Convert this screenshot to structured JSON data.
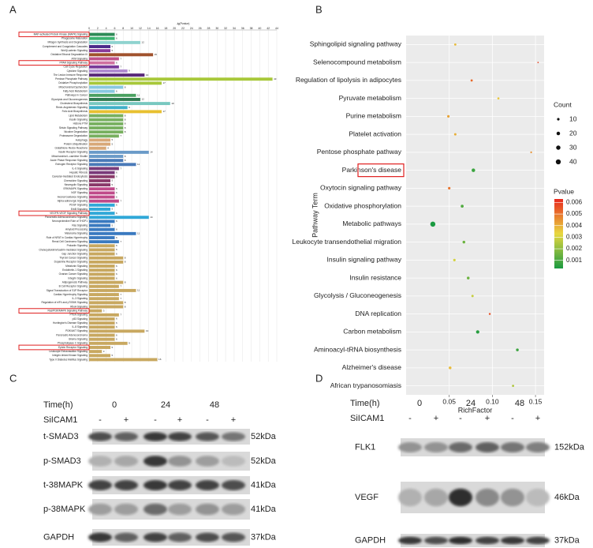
{
  "chart_data": [
    {
      "type": "hbar",
      "panel": "A",
      "title": "-lg(Pvalue)",
      "categories": [
        "MAP-activated Protein Kinase (MAPK) Signaling",
        "Phagosome Maturation",
        "Mitogen Synthesis and Degradation",
        "Complement and Coagulation Cascades",
        "Wnt/β-catenin Signaling",
        "Oxidative Ethanol Degradation III",
        "ATM Signaling",
        "PPAR Signaling Pathway",
        "Cell Cycle Regulation",
        "Cytokine Signaling",
        "The Lesion Immune Response",
        "Pentose Phosphate Pathway",
        "Oxidative Phosphorylation",
        "Mitochondrial Dysfunction",
        "Fatty Acid Metabolism",
        "Pathways in Cancer",
        "Glycolysis and Gluconeogenesis",
        "Cholesterol Biosynthesis",
        "Renin-Angiotensin Signaling",
        "Folic Acid Biosynthesis",
        "Lipid Metabolism",
        "Insulin Signaling",
        "Histone PTM",
        "Sirtuin Signaling Pathway",
        "Nicotine Degradation",
        "Proteasome Degradation",
        "Autophagy",
        "Protein Ubiquitination",
        "Glutathione Redox Reactions",
        "Insulin Receptor Signaling",
        "Mitochondrial L-carnitine Shuttle",
        "Acute Phase Response Signaling",
        "Estrogen Receptor Signaling",
        "IL-6 Signaling",
        "Hepatic Fibrosis",
        "Caveolar-mediated Endocytosis",
        "Chemokine Signaling",
        "Neuregulin Signaling",
        "ERK/MAPK Signaling",
        "NGF Signaling",
        "Axonal Guidance Signaling",
        "Alpha-adrenergic Signaling",
        "PDGF Signaling",
        "ErbB Signaling",
        "VEGFR-VEGF Signaling Pathway",
        "Pancreatic Adenocarcinoma Signaling",
        "Neuroprotective Role of THOP1",
        "Ras Signaling",
        "Amyloid Processing",
        "Melanoma Signaling",
        "Role of NFAT in Cardiac Hypertrophy",
        "Renal Cell Carcinoma Signaling",
        "Prolactin Signaling",
        "Cholecystokinin/Gastrin-mediated Signaling",
        "Gap Junction Signaling",
        "Thyroid Cancer Signaling",
        "Dopamine Receptor Signaling",
        "Melatonin Signaling",
        "Endothelin-1 Signaling",
        "Ovarian Cancer Signaling",
        "Integrin Signaling",
        "Adipogenesis Pathway",
        "B Cell Receptor Signaling",
        "Signal Transduction of S1P Receptor",
        "Cardiac Hypertrophy Signaling",
        "IL-3 Signaling",
        "Regulation of eIF4 and p70S6K Signaling",
        "RhoA Signaling",
        "Ras/PI3K/MAPK Signaling Pathway",
        "PTEN Signaling",
        "p53 Signaling",
        "Huntington's Disease Signaling",
        "IL-8 Signaling",
        "PI3K/AKT Signaling",
        "Pancreatic Adenocarcinoma",
        "Glioma Signaling",
        "Phospholipase C Signaling",
        "Ephrin Receptor Signaling",
        "Leukocyte Extravasation Signaling",
        "Integrin-linked Kinase Signaling",
        "Type II Diabetes Mellitus Signaling"
      ],
      "values": [
        6,
        6,
        12,
        5,
        5,
        15,
        7,
        6,
        7,
        9,
        13,
        43,
        17,
        8,
        6,
        11,
        12,
        19,
        9,
        17,
        8,
        8,
        8,
        8,
        8,
        7,
        5,
        5,
        4,
        14,
        8,
        8,
        11,
        7,
        6,
        6,
        5,
        5,
        6,
        6,
        6,
        7,
        6,
        5,
        6,
        14,
        6,
        5,
        6,
        11,
        6,
        7,
        6,
        6,
        6,
        8,
        8,
        6,
        6,
        6,
        6,
        8,
        7,
        11,
        7,
        7,
        8,
        8,
        3,
        7,
        6,
        6,
        6,
        13,
        6,
        6,
        9,
        5,
        3,
        5,
        16
      ],
      "colors": [
        "#2e8b57",
        "#3cb371",
        "#8fd3cf",
        "#4b2a8a",
        "#8a3a9a",
        "#a0522d",
        "#c0508a",
        "#d070a0",
        "#7a3a9a",
        "#b08ad0",
        "#5a2a7a",
        "#a8c83a",
        "#a8c83a",
        "#88c8e0",
        "#88c8e0",
        "#4aa060",
        "#2f7a50",
        "#78c8c0",
        "#40b0c8",
        "#e8c030",
        "#78b060",
        "#78b060",
        "#78b060",
        "#78b060",
        "#78b060",
        "#78b060",
        "#d8a878",
        "#d8a878",
        "#d8a878",
        "#6a9ac8",
        "#6a9ac8",
        "#4a7ab8",
        "#4a7ab8",
        "#7a3a7a",
        "#7a3a7a",
        "#8a3a6a",
        "#8a3a6a",
        "#8a3a6a",
        "#c04a8a",
        "#c04a8a",
        "#c04a8a",
        "#c04a8a",
        "#30a8d8",
        "#30a8d8",
        "#30a8d8",
        "#30a8d8",
        "#3a7ac0",
        "#3a7ac0",
        "#3a7ac0",
        "#3a7ac0",
        "#3a7ac0",
        "#3a7ac0",
        "#c8a860",
        "#c8a860",
        "#c8a860",
        "#c8a860",
        "#c8a860",
        "#c8a860",
        "#c8a860",
        "#c8a860",
        "#c8a860",
        "#c8a860",
        "#c8a860",
        "#c8a860",
        "#c8a860",
        "#c8a860",
        "#c8a860",
        "#c8a860",
        "#c8a860",
        "#c8a860",
        "#c8a860",
        "#c8a860",
        "#c8a860",
        "#c8a860",
        "#c8a860",
        "#c8a860",
        "#c8a860",
        "#c8a860",
        "#c8a860",
        "#c8a860",
        "#c8a860"
      ],
      "highlight": [
        0,
        7,
        44,
        68,
        77
      ],
      "xlim": [
        0,
        44
      ],
      "xticks": [
        0,
        2,
        4,
        6,
        8,
        10,
        12,
        14,
        16,
        18,
        20,
        22,
        24,
        26,
        28,
        30,
        32,
        34,
        36,
        38,
        40,
        42,
        44
      ],
      "grid": true
    },
    {
      "type": "dot",
      "panel": "B",
      "xlabel": "RichFactor",
      "ylabel": "Pathway Term",
      "categories": [
        "Sphingolipid signaling pathway",
        "Selenocompound metabolism",
        "Regulation of lipolysis in adipocytes",
        "Pyruvate metabolism",
        "Purine metabolism",
        "Platelet activation",
        "Pentose phosphate pathway",
        "Parkinson's disease",
        "Oxytocin signaling pathway",
        "Oxidative phosphorylation",
        "Metabolic pathways",
        "Leukocyte transendothelial migration",
        "Insulin signaling pathway",
        "Insulin resistance",
        "Glycolysis / Gluconeogenesis",
        "DNA replication",
        "Carbon metabolism",
        "Aminoacyl-tRNA biosynthesis",
        "Alzheimer's disease",
        "African trypanosomiasis"
      ],
      "values": [
        0.057,
        0.153,
        0.076,
        0.107,
        0.049,
        0.057,
        0.145,
        0.078,
        0.05,
        0.065,
        0.031,
        0.067,
        0.056,
        0.072,
        0.077,
        0.097,
        0.083,
        0.129,
        0.051,
        0.124
      ],
      "count": [
        8,
        3,
        8,
        7,
        10,
        9,
        5,
        20,
        10,
        14,
        42,
        12,
        10,
        12,
        9,
        6,
        18,
        12,
        12,
        8
      ],
      "pvalue": [
        0.0038,
        0.0058,
        0.0052,
        0.0036,
        0.0042,
        0.004,
        0.0045,
        0.0008,
        0.005,
        0.0011,
        0.0003,
        0.0015,
        0.003,
        0.0015,
        0.0028,
        0.0056,
        0.0005,
        0.0008,
        0.0038,
        0.0025
      ],
      "highlight": [
        7
      ],
      "xlim": [
        0,
        0.16
      ],
      "xticks": [
        0.05,
        {
          "value": 0.1,
          "label": "0.10"
        },
        0.15
      ],
      "count_title": "Count",
      "count_ticks": [
        10,
        20,
        30,
        40
      ],
      "color_title": "Pvalue",
      "clim": [
        0.0003,
        0.0063
      ],
      "colorscale": [
        "#1a9a40",
        "#e8d840",
        "#e8281e"
      ],
      "color_ticks": [
        0.006,
        0.005,
        0.004,
        0.003,
        0.002,
        0.001
      ],
      "background": "#ebebeb"
    }
  ],
  "blots": [
    {
      "panel": "C",
      "time_label": "Time(h)",
      "times": [
        "0",
        "24",
        "48"
      ],
      "treatment_label": "SiICAM1",
      "treatment": [
        "-",
        "+",
        "-",
        "+",
        "-",
        "+"
      ],
      "rows": [
        {
          "protein": "t-SMAD3",
          "size": "52kDa"
        },
        {
          "protein": "p-SMAD3",
          "size": "52kDa"
        },
        {
          "protein": "t-38MAPK",
          "size": "41kDa"
        },
        {
          "protein": "p-38MAPK",
          "size": "41kDa"
        },
        {
          "protein": "GAPDH",
          "size": "37kDa"
        }
      ]
    },
    {
      "panel": "D",
      "time_label": "Time(h)",
      "times": [
        "0",
        "24",
        "48"
      ],
      "treatment_label": "SiICAM1",
      "treatment": [
        "-",
        "+",
        "-",
        "+",
        "-",
        "+"
      ],
      "rows": [
        {
          "protein": "FLK1",
          "size": "152kDa"
        },
        {
          "protein": "VEGF",
          "size": "46kDa"
        },
        {
          "protein": "GAPDH",
          "size": "37kDa"
        }
      ]
    }
  ]
}
